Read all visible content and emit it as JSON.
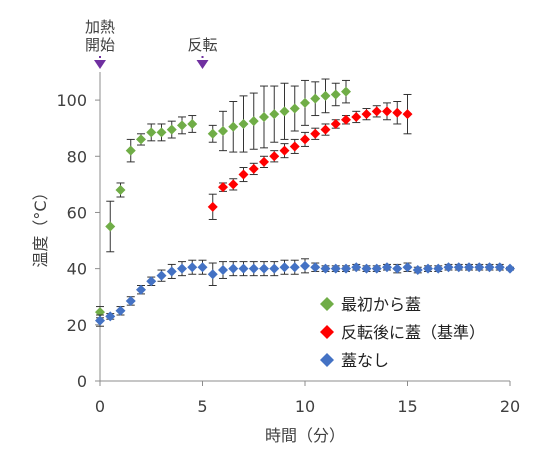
{
  "chart_data": {
    "type": "scatter",
    "title": "",
    "xlabel": "時間（分）",
    "ylabel": "温度（°C）",
    "xlim": [
      0,
      20
    ],
    "ylim": [
      0,
      110
    ],
    "xticks": [
      0,
      5,
      10,
      15,
      20
    ],
    "yticks": [
      0,
      20,
      40,
      60,
      80,
      100
    ],
    "grid": false,
    "legend_position": "bottom-right",
    "annotations": [
      {
        "lines": [
          "加熱",
          "開始"
        ],
        "x": 0,
        "color": "#7030a0"
      },
      {
        "lines": [
          "反転"
        ],
        "x": 5,
        "color": "#7030a0"
      }
    ],
    "series": [
      {
        "name": "最初から蓋",
        "color": "#70ad47",
        "x": [
          0,
          0.5,
          1,
          1.5,
          2,
          2.5,
          3,
          3.5,
          4,
          4.5,
          5.5,
          6,
          6.5,
          7,
          7.5,
          8,
          8.5,
          9,
          9.5,
          10,
          10.5,
          11,
          11.5,
          12
        ],
        "y": [
          24.5,
          55,
          68,
          82,
          86,
          88.5,
          88.5,
          89.5,
          91,
          91.5,
          88,
          89,
          90.5,
          91.5,
          92.5,
          94,
          95,
          96,
          97,
          99,
          100.5,
          101.5,
          102,
          103
        ],
        "err": [
          2,
          9,
          2.5,
          4,
          2,
          3,
          3,
          3,
          3,
          3,
          3,
          7,
          9,
          10,
          10,
          11,
          10,
          10,
          8,
          8,
          6,
          6,
          4,
          4
        ]
      },
      {
        "name": "反転後に蓋（基準）",
        "color": "#ff0000",
        "x": [
          5.5,
          6,
          6.5,
          7,
          7.5,
          8,
          8.5,
          9,
          9.5,
          10,
          10.5,
          11,
          11.5,
          12,
          12.5,
          13,
          13.5,
          14,
          14.5,
          15
        ],
        "y": [
          62,
          69,
          70,
          73.5,
          75.5,
          78,
          80,
          82,
          83.5,
          86,
          88,
          89.5,
          91.5,
          93,
          94,
          95,
          96,
          96,
          95.5,
          95
        ],
        "err": [
          4.5,
          1.5,
          2,
          2.5,
          2,
          2,
          2,
          2.5,
          2.5,
          2.5,
          2,
          2,
          1.5,
          1.5,
          2,
          2,
          2,
          3,
          4,
          7
        ]
      },
      {
        "name": "蓋なし",
        "color": "#4472c4",
        "x": [
          0,
          0.5,
          1,
          1.5,
          2,
          2.5,
          3,
          3.5,
          4,
          4.5,
          5,
          5.5,
          6,
          6.5,
          7,
          7.5,
          8,
          8.5,
          9,
          9.5,
          10,
          10.5,
          11,
          11.5,
          12,
          12.5,
          13,
          13.5,
          14,
          14.5,
          15,
          15.5,
          16,
          16.5,
          17,
          17.5,
          18,
          18.5,
          19,
          19.5,
          20
        ],
        "y": [
          21.5,
          23,
          25,
          28.5,
          32.5,
          35.5,
          37.5,
          39,
          40,
          40.5,
          40.5,
          38,
          39.5,
          40,
          40,
          40,
          40,
          40,
          40.5,
          40.5,
          41,
          40.5,
          40,
          40,
          40,
          40.5,
          40,
          40,
          40.5,
          40,
          40.5,
          39.5,
          40,
          40,
          40.5,
          40.5,
          40.5,
          40.5,
          40.5,
          40.5,
          40
        ],
        "err": [
          2,
          1,
          1.5,
          1.5,
          1.5,
          1.5,
          2,
          2.5,
          2.5,
          2.5,
          2.5,
          4,
          3,
          2.5,
          2.5,
          2.5,
          2.5,
          2.5,
          2.5,
          2.5,
          2.5,
          1.5,
          1,
          1,
          1,
          1,
          1,
          1,
          1,
          1.5,
          1.5,
          1,
          1,
          1,
          1,
          1,
          1,
          1,
          1,
          1,
          0.5
        ]
      }
    ]
  }
}
